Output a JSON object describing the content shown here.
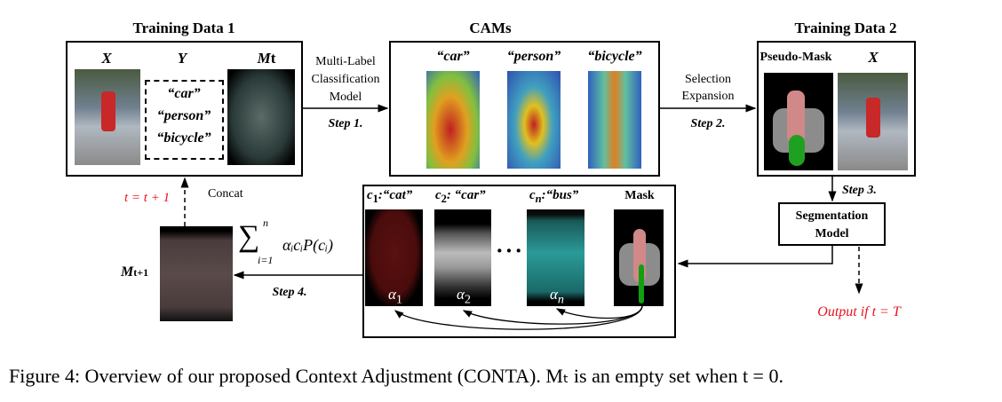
{
  "training_data_1": {
    "title": "Training Data 1",
    "x_label": "X",
    "y_label": "Y",
    "mt_label": "M",
    "mt_sub": "t",
    "labels": [
      "“car”",
      "“person”",
      "“bicycle”"
    ]
  },
  "step1": {
    "model": [
      "Multi-Label",
      "Classification",
      "Model"
    ],
    "step": "Step 1."
  },
  "cams": {
    "title": "CAMs",
    "labels": [
      "“car”",
      "“person”",
      "“bicycle”"
    ]
  },
  "step2": {
    "text": [
      "Selection",
      "Expansion"
    ],
    "step": "Step 2."
  },
  "training_data_2": {
    "title": "Training Data 2",
    "pseudo_mask_label": "Pseudo-Mask",
    "x_label": "X"
  },
  "step3": {
    "step": "Step 3.",
    "model": [
      "Segmentation",
      "Model"
    ],
    "output": "Output if  t = T"
  },
  "dictionary": {
    "items": [
      {
        "c": "c",
        "sub": "1",
        "label": ":“cat”",
        "alpha": "α",
        "alpha_sub": "1"
      },
      {
        "c": "c",
        "sub": "2",
        "label": ": “car”",
        "alpha": "α",
        "alpha_sub": "2"
      },
      {
        "c": "c",
        "sub": "n",
        "label": ":“bus”",
        "alpha": "α",
        "alpha_sub": "n"
      }
    ],
    "ellipsis": "···",
    "mask_label": "Mask"
  },
  "step4": {
    "formula": "∑",
    "formula_top": "n",
    "formula_bottom": "i=1",
    "formula_body": "αᵢcᵢP(cᵢ)",
    "step": "Step 4.",
    "mt1_label": "M",
    "mt1_sub": "t+1"
  },
  "concat": {
    "label": "Concat",
    "update": "t = t + 1"
  },
  "caption": "Figure 4: Overview of our proposed Context Adjustment (CONTA). Mₜ is an empty set when t = 0.",
  "colors": {
    "red": "#e8141e"
  }
}
